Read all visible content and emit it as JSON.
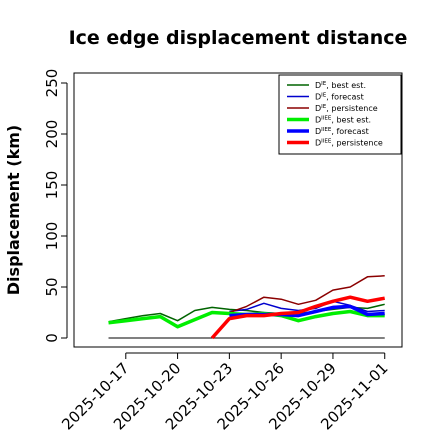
{
  "chart_data": {
    "type": "line",
    "title": "Ice edge displacement distance",
    "xlabel": "",
    "ylabel": "Displacement (km)",
    "ylim": [
      0,
      260
    ],
    "yticks": [
      "0",
      "50",
      "100",
      "150",
      "200",
      "250"
    ],
    "xrange": [
      "2025-10-14",
      "2025-11-02"
    ],
    "xticks": [
      {
        "date": "2025-10-17",
        "label": "2025-10-17",
        "color": "#000000"
      },
      {
        "date": "2025-10-20",
        "label": "2025-10-20",
        "color": "#000000"
      },
      {
        "date": "2025-10-23",
        "label": "2025-10-23",
        "color": "#228b22"
      },
      {
        "date": "2025-10-26",
        "label": "2025-10-26",
        "color": "#000000"
      },
      {
        "date": "2025-10-29",
        "label": "2025-10-29",
        "color": "#000000"
      },
      {
        "date": "2025-11-01",
        "label": "2025-11-01",
        "color": "#000000"
      }
    ],
    "zero_line": {
      "from": "2025-10-16",
      "to": "2025-11-01",
      "value": 0,
      "color": "#000000"
    },
    "legend": {
      "position": "top-right"
    },
    "series": [
      {
        "name": "D^IE best est.",
        "base": "D",
        "sup": "IE",
        "desc": ", best est.",
        "color": "#006400",
        "width": 1.5,
        "points": [
          [
            "2025-10-16",
            16
          ],
          [
            "2025-10-17",
            19
          ],
          [
            "2025-10-18",
            22
          ],
          [
            "2025-10-19",
            24
          ],
          [
            "2025-10-20",
            17
          ],
          [
            "2025-10-21",
            27
          ],
          [
            "2025-10-22",
            30
          ],
          [
            "2025-10-23",
            28
          ],
          [
            "2025-10-24",
            27
          ],
          [
            "2025-10-25",
            25
          ],
          [
            "2025-10-26",
            24
          ],
          [
            "2025-10-27",
            24
          ],
          [
            "2025-10-28",
            26
          ],
          [
            "2025-10-29",
            28
          ],
          [
            "2025-10-30",
            30
          ],
          [
            "2025-10-31",
            29
          ],
          [
            "2025-11-01",
            33
          ]
        ]
      },
      {
        "name": "D^IE forecast",
        "base": "D",
        "sup": "IE",
        "desc": ", forecast",
        "color": "#0000cd",
        "width": 1.5,
        "points": [
          [
            "2025-10-23",
            26
          ],
          [
            "2025-10-24",
            28
          ],
          [
            "2025-10-25",
            34
          ],
          [
            "2025-10-26",
            29
          ],
          [
            "2025-10-27",
            27
          ],
          [
            "2025-10-28",
            29
          ],
          [
            "2025-10-29",
            36
          ],
          [
            "2025-10-30",
            32
          ],
          [
            "2025-10-31",
            26
          ],
          [
            "2025-11-01",
            27
          ]
        ]
      },
      {
        "name": "D^IE persistence",
        "base": "D",
        "sup": "IE",
        "desc": ", persistence",
        "color": "#8b0000",
        "width": 1.5,
        "points": [
          [
            "2025-10-23",
            25
          ],
          [
            "2025-10-24",
            31
          ],
          [
            "2025-10-25",
            40
          ],
          [
            "2025-10-26",
            38
          ],
          [
            "2025-10-27",
            33
          ],
          [
            "2025-10-28",
            37
          ],
          [
            "2025-10-29",
            47
          ],
          [
            "2025-10-30",
            50
          ],
          [
            "2025-10-31",
            60
          ],
          [
            "2025-11-01",
            61
          ]
        ]
      },
      {
        "name": "D^IIEE best est.",
        "base": "D",
        "sup": "IIEE",
        "desc": ", best est.",
        "color": "#00ee00",
        "width": 3.5,
        "points": [
          [
            "2025-10-16",
            15
          ],
          [
            "2025-10-17",
            17
          ],
          [
            "2025-10-18",
            19
          ],
          [
            "2025-10-19",
            21
          ],
          [
            "2025-10-20",
            11
          ],
          [
            "2025-10-21",
            18
          ],
          [
            "2025-10-22",
            25
          ],
          [
            "2025-10-23",
            24
          ],
          [
            "2025-10-24",
            23
          ],
          [
            "2025-10-25",
            24
          ],
          [
            "2025-10-26",
            22
          ],
          [
            "2025-10-27",
            17
          ],
          [
            "2025-10-28",
            21
          ],
          [
            "2025-10-29",
            24
          ],
          [
            "2025-10-30",
            26
          ],
          [
            "2025-10-31",
            22
          ],
          [
            "2025-11-01",
            22
          ]
        ]
      },
      {
        "name": "D^IIEE forecast",
        "base": "D",
        "sup": "IIEE",
        "desc": ", forecast",
        "color": "#0000ff",
        "width": 3.5,
        "points": [
          [
            "2025-10-23",
            22
          ],
          [
            "2025-10-24",
            23
          ],
          [
            "2025-10-25",
            23
          ],
          [
            "2025-10-26",
            23
          ],
          [
            "2025-10-27",
            22
          ],
          [
            "2025-10-28",
            26
          ],
          [
            "2025-10-29",
            30
          ],
          [
            "2025-10-30",
            31
          ],
          [
            "2025-10-31",
            23
          ],
          [
            "2025-11-01",
            24
          ]
        ]
      },
      {
        "name": "D^IIEE persistence",
        "base": "D",
        "sup": "IIEE",
        "desc": ", persistence",
        "color": "#ff0000",
        "width": 3.5,
        "points": [
          [
            "2025-10-22",
            0
          ],
          [
            "2025-10-23",
            19
          ],
          [
            "2025-10-24",
            22
          ],
          [
            "2025-10-25",
            22
          ],
          [
            "2025-10-26",
            24
          ],
          [
            "2025-10-27",
            25
          ],
          [
            "2025-10-28",
            31
          ],
          [
            "2025-10-29",
            36
          ],
          [
            "2025-10-30",
            40
          ],
          [
            "2025-10-31",
            36
          ],
          [
            "2025-11-01",
            39
          ]
        ]
      }
    ]
  }
}
